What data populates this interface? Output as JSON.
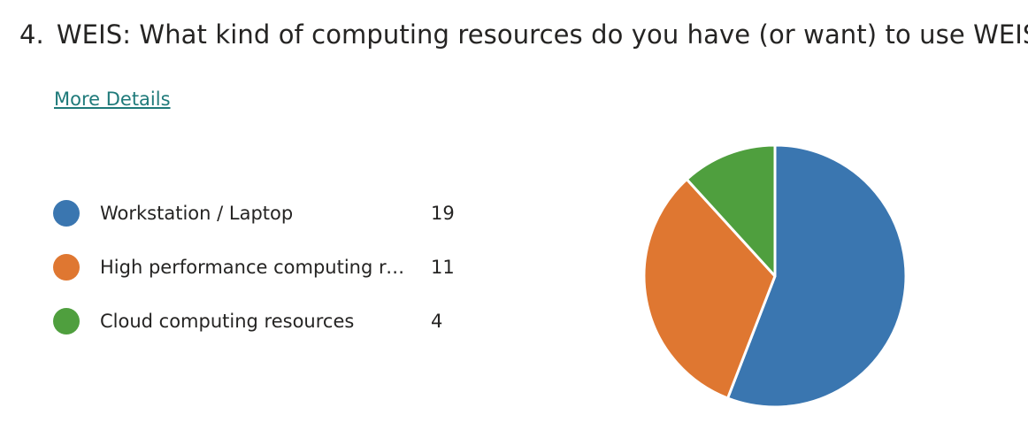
{
  "question": {
    "number": "4.",
    "text": "WEIS: What kind of computing resources do you have (or want) to use WEIS?"
  },
  "more_details_label": "More Details",
  "chart_data": {
    "type": "pie",
    "title": "",
    "series": [
      {
        "name": "Workstation / Laptop",
        "display_name": "Workstation / Laptop",
        "value": 19,
        "color": "#3a76b0"
      },
      {
        "name": "High performance computing resources",
        "display_name": "High performance computing re...",
        "value": 11,
        "color": "#df7731"
      },
      {
        "name": "Cloud computing resources",
        "display_name": "Cloud computing resources",
        "value": 4,
        "color": "#4f9f3e"
      }
    ],
    "legend_position": "left"
  }
}
